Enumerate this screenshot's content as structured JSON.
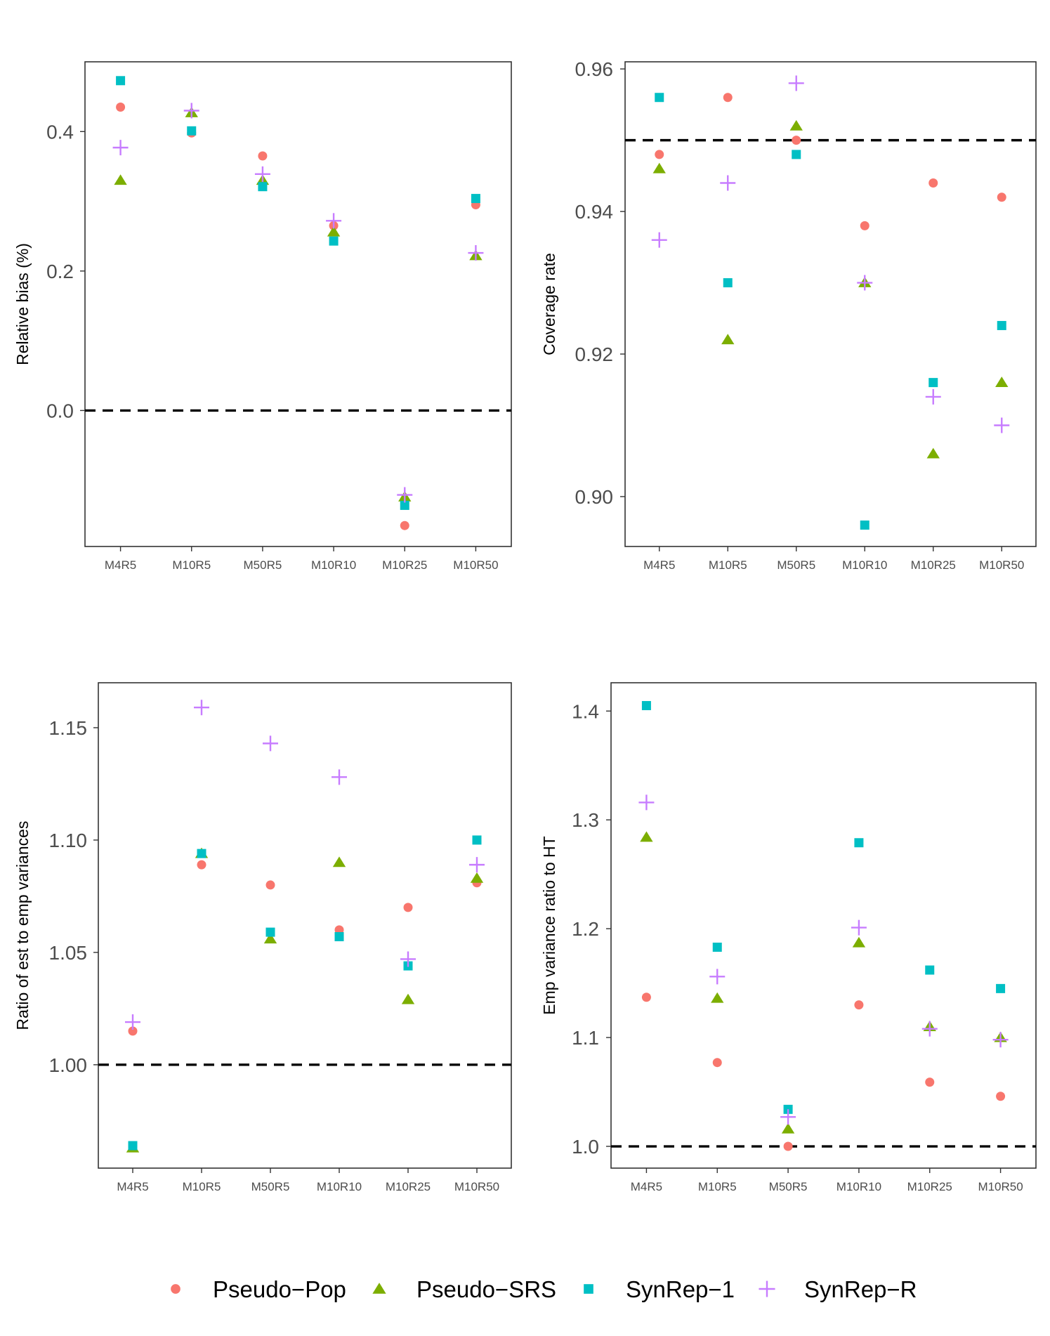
{
  "legend": {
    "items": [
      {
        "label": "Pseudo−Pop",
        "shape": "circle",
        "color": "#F8766D"
      },
      {
        "label": "Pseudo−SRS",
        "shape": "triangle",
        "color": "#7CAE00"
      },
      {
        "label": "SynRep−1",
        "shape": "square",
        "color": "#00BFC4"
      },
      {
        "label": "SynRep−R",
        "shape": "plus",
        "color": "#C77CFF"
      }
    ]
  },
  "chart_data": [
    {
      "type": "scatter",
      "ylabel": "Relative bias (%)",
      "categories": [
        "M4R5",
        "M10R5",
        "M50R5",
        "M10R10",
        "M10R25",
        "M10R50"
      ],
      "ylim": [
        -0.195,
        0.5
      ],
      "yticks": [
        "0.0",
        "0.2",
        "0.4"
      ],
      "reference_line": 0.0,
      "series": [
        {
          "name": "Pseudo−Pop",
          "values": [
            0.435,
            0.398,
            0.365,
            0.265,
            -0.165,
            0.295
          ]
        },
        {
          "name": "Pseudo−SRS",
          "values": [
            0.33,
            0.427,
            0.33,
            0.256,
            -0.124,
            0.222
          ]
        },
        {
          "name": "SynRep−1",
          "values": [
            0.473,
            0.401,
            0.321,
            0.243,
            -0.136,
            0.304
          ]
        },
        {
          "name": "SynRep−R",
          "values": [
            0.377,
            0.43,
            0.339,
            0.272,
            -0.121,
            0.226
          ]
        }
      ]
    },
    {
      "type": "scatter",
      "ylabel": "Coverage rate",
      "categories": [
        "M4R5",
        "M10R5",
        "M50R5",
        "M10R10",
        "M10R25",
        "M10R50"
      ],
      "ylim": [
        0.893,
        0.961
      ],
      "yticks": [
        "0.90",
        "0.92",
        "0.94",
        "0.96"
      ],
      "reference_line": 0.95,
      "series": [
        {
          "name": "Pseudo−Pop",
          "values": [
            0.948,
            0.956,
            0.95,
            0.938,
            0.944,
            0.942
          ]
        },
        {
          "name": "Pseudo−SRS",
          "values": [
            0.946,
            0.922,
            0.952,
            0.93,
            0.906,
            0.916
          ]
        },
        {
          "name": "SynRep−1",
          "values": [
            0.956,
            0.93,
            0.948,
            0.896,
            0.916,
            0.924
          ]
        },
        {
          "name": "SynRep−R",
          "values": [
            0.936,
            0.944,
            0.958,
            0.93,
            0.914,
            0.91
          ]
        }
      ]
    },
    {
      "type": "scatter",
      "ylabel": "Ratio of est to emp variances",
      "categories": [
        "M4R5",
        "M10R5",
        "M50R5",
        "M10R10",
        "M10R25",
        "M10R50"
      ],
      "ylim": [
        0.954,
        1.17
      ],
      "yticks": [
        "1.00",
        "1.05",
        "1.10",
        "1.15"
      ],
      "reference_line": 1.0,
      "series": [
        {
          "name": "Pseudo−Pop",
          "values": [
            1.015,
            1.089,
            1.08,
            1.06,
            1.07,
            1.081
          ]
        },
        {
          "name": "Pseudo−SRS",
          "values": [
            0.963,
            1.094,
            1.056,
            1.09,
            1.029,
            1.083
          ]
        },
        {
          "name": "SynRep−1",
          "values": [
            0.964,
            1.094,
            1.059,
            1.057,
            1.044,
            1.1
          ]
        },
        {
          "name": "SynRep−R",
          "values": [
            1.019,
            1.159,
            1.143,
            1.128,
            1.047,
            1.089
          ]
        }
      ]
    },
    {
      "type": "scatter",
      "ylabel": "Emp variance ratio to HT",
      "categories": [
        "M4R5",
        "M10R5",
        "M50R5",
        "M10R10",
        "M10R25",
        "M10R50"
      ],
      "ylim": [
        0.98,
        1.426
      ],
      "yticks": [
        "1.0",
        "1.1",
        "1.2",
        "1.3",
        "1.4"
      ],
      "reference_line": 1.0,
      "series": [
        {
          "name": "Pseudo−Pop",
          "values": [
            1.137,
            1.077,
            1.0,
            1.13,
            1.059,
            1.046
          ]
        },
        {
          "name": "Pseudo−SRS",
          "values": [
            1.284,
            1.136,
            1.016,
            1.187,
            1.11,
            1.1
          ]
        },
        {
          "name": "SynRep−1",
          "values": [
            1.405,
            1.183,
            1.034,
            1.279,
            1.162,
            1.145
          ]
        },
        {
          "name": "SynRep−R",
          "values": [
            1.316,
            1.156,
            1.027,
            1.201,
            1.108,
            1.098
          ]
        }
      ]
    }
  ]
}
